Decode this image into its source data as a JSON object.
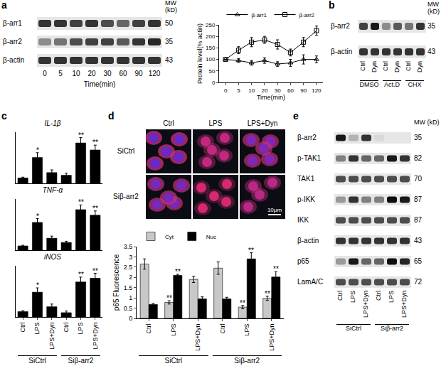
{
  "panel_letters": [
    "a",
    "b",
    "c",
    "d",
    "e"
  ],
  "blots": [
    {
      "rows": [
        {
          "label": "β-arr1",
          "mw": 50,
          "intensity": [
            0.8,
            0.8,
            0.75,
            0.8,
            0.7,
            0.6,
            0.75,
            0.8
          ]
        },
        {
          "label": "β-arr2",
          "mw": 35,
          "intensity": [
            0.45,
            0.55,
            0.7,
            0.75,
            0.75,
            0.65,
            0.8,
            0.85
          ]
        },
        {
          "label": "β-actin",
          "mw": 43,
          "intensity": [
            0.8,
            0.8,
            0.8,
            0.8,
            0.8,
            0.8,
            0.8,
            0.8
          ]
        }
      ],
      "lanes": [
        "0",
        "5",
        "10",
        "20",
        "30",
        "60",
        "90",
        "120"
      ],
      "lanes_title": "Time(min)",
      "mw_header": "MW (kD)"
    },
    {
      "rows": [
        {
          "label": "β-arr2",
          "mw": 35,
          "intensity": [
            0.75,
            0.9,
            0.45,
            0.65,
            0.55,
            0.8
          ]
        },
        {
          "label": "β-actin",
          "mw": 43,
          "intensity": [
            0.8,
            0.8,
            0.8,
            0.8,
            0.8,
            0.8
          ]
        }
      ],
      "lanes": [
        "Ctrl",
        "Dyn",
        "Ctrl",
        "Dyn",
        "Ctrl",
        "Dyn"
      ],
      "lane_groups": [
        "DMSO",
        "Act.D",
        "CHX"
      ],
      "mw_header": "MW (kD)"
    },
    {
      "rows": [
        {
          "label": "β-arr2",
          "mw": 35,
          "intensity": [
            0.9,
            0.3,
            0.8,
            0.15,
            0.1,
            0.1
          ]
        },
        {
          "label": "p-TAK1",
          "mw": 82,
          "intensity": [
            0.5,
            0.8,
            0.6,
            0.6,
            0.9,
            0.8
          ]
        },
        {
          "label": "TAK1",
          "mw": 70,
          "intensity": [
            0.7,
            0.7,
            0.7,
            0.7,
            0.7,
            0.7
          ]
        },
        {
          "label": "p-IKK",
          "mw": 87,
          "intensity": [
            0.4,
            0.8,
            0.5,
            0.5,
            0.95,
            0.9
          ]
        },
        {
          "label": "IKK",
          "mw": 87,
          "intensity": [
            0.7,
            0.7,
            0.7,
            0.7,
            0.7,
            0.7
          ]
        },
        {
          "label": "β-actin",
          "mw": 43,
          "intensity": [
            0.8,
            0.8,
            0.8,
            0.8,
            0.8,
            0.8
          ]
        },
        {
          "label": "p65",
          "mw": 65,
          "intensity": [
            0.4,
            0.9,
            0.6,
            0.6,
            0.95,
            0.85
          ]
        },
        {
          "label": "LamA/C",
          "mw": 72,
          "intensity": [
            0.7,
            0.7,
            0.7,
            0.7,
            0.7,
            0.7
          ]
        }
      ],
      "lanes": [
        "Ctrl",
        "LPS",
        "LPS+Dyn",
        "Ctrl",
        "LPS",
        "LPS+Dyn"
      ],
      "lane_groups": [
        "SiCtrl",
        "Siβ-arr2"
      ],
      "mw_header": "MW (kD)"
    }
  ],
  "micrographs": {
    "columns": [
      "Ctrl",
      "LPS",
      "LPS+Dyn"
    ],
    "rows": [
      "SiCtrl",
      "Siβ-arr2"
    ],
    "scale_bar": "10μm"
  },
  "chart_data": [
    {
      "type": "line",
      "xlabel": "Time(min)",
      "ylabel": "Protein level(% actin)",
      "categories": [
        "0",
        "5",
        "10",
        "20",
        "30",
        "60",
        "90",
        "120"
      ],
      "ylim": [
        0,
        250
      ],
      "yticks": [
        0,
        50,
        100,
        150,
        200,
        250
      ],
      "legend": "top",
      "series": [
        {
          "name": "β-arr1",
          "color": "#000000",
          "marker": "triangle-up-open",
          "values": [
            100,
            95,
            85,
            95,
            80,
            85,
            100,
            100
          ],
          "errors": [
            0,
            8,
            10,
            12,
            10,
            15,
            20,
            15
          ]
        },
        {
          "name": "β-arr2",
          "color": "#000000",
          "marker": "square-open",
          "values": [
            100,
            140,
            175,
            185,
            165,
            130,
            175,
            225
          ],
          "errors": [
            0,
            15,
            20,
            15,
            20,
            15,
            20,
            20
          ]
        }
      ]
    },
    {
      "type": "bar",
      "title": "IL-1β",
      "categories": [
        "Ctrl",
        "LPS",
        "LPS+Dyn",
        "Ctrl",
        "LPS",
        "LPS+Dyn"
      ],
      "values": [
        1,
        4.8,
        2,
        1.5,
        7.5,
        6.2
      ],
      "errors": [
        0.15,
        0.9,
        0.5,
        0.4,
        1.0,
        0.9
      ],
      "stars": [
        null,
        "*",
        null,
        null,
        "**",
        "**"
      ],
      "color": "#000000",
      "ylim": [
        0,
        9.5
      ],
      "tick_labels": false
    },
    {
      "type": "bar",
      "title": "TNF-α",
      "categories": [
        "Ctrl",
        "LPS",
        "LPS+Dyn",
        "Ctrl",
        "LPS",
        "LPS+Dyn"
      ],
      "values": [
        1,
        6.5,
        2.8,
        1.8,
        9.5,
        8.2
      ],
      "errors": [
        0.15,
        0.9,
        0.5,
        0.3,
        1.1,
        1.0
      ],
      "stars": [
        null,
        "*",
        null,
        null,
        "**",
        "**"
      ],
      "color": "#000000",
      "ylim": [
        0,
        12
      ],
      "tick_labels": false
    },
    {
      "type": "bar",
      "title": "iNOS",
      "categories": [
        "Ctrl",
        "LPS",
        "LPS+Dyn",
        "Ctrl",
        "LPS",
        "LPS+Dyn"
      ],
      "groups": [
        "SiCtrl",
        "Siβ-arr2"
      ],
      "values": [
        1,
        4.6,
        1.9,
        0.8,
        6.5,
        7.2
      ],
      "errors": [
        0.15,
        0.8,
        0.5,
        0.3,
        0.9,
        0.9
      ],
      "stars": [
        null,
        "*",
        null,
        null,
        "**",
        "**"
      ],
      "color": "#000000",
      "ylim": [
        0,
        9.5
      ],
      "tick_labels": "x"
    },
    {
      "type": "bar",
      "ylabel": "p65 Fluorescence",
      "categories": [
        "Ctrl",
        "LPS",
        "LPS+Dyn",
        "Ctrl",
        "LPS",
        "LPS+Dyn"
      ],
      "groups": [
        "SiCtrl",
        "Siβ-arr2"
      ],
      "ylim": [
        0,
        3.5
      ],
      "yticks": [
        0,
        0.5,
        1,
        1.5,
        2,
        2.5,
        3,
        3.5
      ],
      "legend": "top left",
      "series": [
        {
          "name": "Cyt",
          "color": "#c8c8c8",
          "values": [
            2.65,
            0.78,
            1.9,
            2.45,
            0.55,
            0.98
          ],
          "errors": [
            0.25,
            0.08,
            0.15,
            0.3,
            0.08,
            0.1
          ],
          "stars": [
            null,
            "**",
            null,
            null,
            "**",
            "**"
          ]
        },
        {
          "name": "Nuc",
          "color": "#000000",
          "values": [
            0.68,
            2.1,
            0.95,
            0.95,
            2.9,
            2.02
          ],
          "errors": [
            0.05,
            0.05,
            0.1,
            0.08,
            0.3,
            0.25
          ],
          "stars": [
            null,
            "**",
            null,
            null,
            "**",
            "**"
          ]
        }
      ]
    }
  ]
}
